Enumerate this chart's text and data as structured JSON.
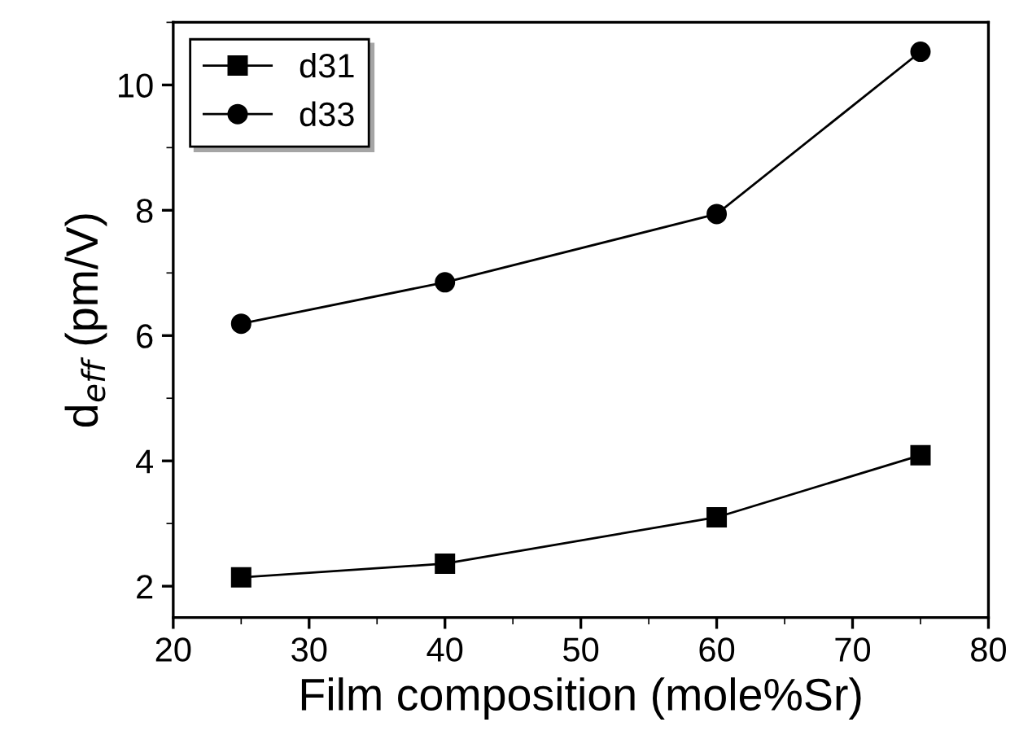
{
  "chart_data": {
    "type": "line",
    "xlabel": "Film composition (mole%Sr)",
    "ylabel": "d$_{eff}$ (pm/V)",
    "x": [
      25,
      40,
      60,
      75
    ],
    "series": [
      {
        "name": "d31",
        "color": "#000000",
        "marker": "square",
        "values": [
          2.14,
          2.36,
          3.1,
          4.09
        ]
      },
      {
        "name": "d33",
        "color": "#000000",
        "marker": "circle",
        "values": [
          6.19,
          6.85,
          7.94,
          10.53
        ]
      }
    ],
    "xlim": [
      20,
      80
    ],
    "xticks": [
      20,
      30,
      40,
      50,
      60,
      70,
      80
    ],
    "ylim": [
      1.5,
      11
    ],
    "yticks": [
      2,
      4,
      6,
      8,
      10
    ],
    "grid": false,
    "legend": "top left",
    "line_style": "solid"
  }
}
